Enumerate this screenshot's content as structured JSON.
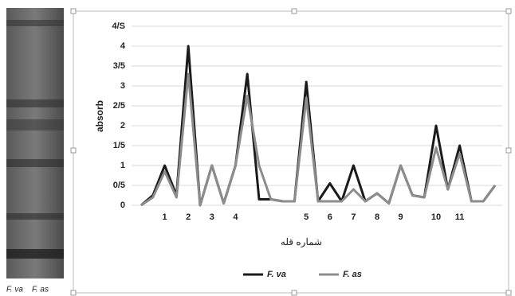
{
  "chart_data": {
    "type": "line",
    "ylabel": "absorb",
    "xlabel": "شماره قله",
    "categories": [
      null,
      null,
      "1",
      null,
      "2",
      null,
      "3",
      null,
      "4",
      null,
      null,
      null,
      null,
      null,
      "5",
      null,
      "6",
      null,
      "7",
      null,
      "8",
      null,
      "9",
      null,
      null,
      "10",
      null,
      "11",
      null,
      null,
      null
    ],
    "series": [
      {
        "name": "F. va",
        "color": "#1a1a1a",
        "values": [
          0,
          0.25,
          1,
          0.25,
          4,
          0,
          1,
          0.05,
          1,
          3.3,
          0.15,
          0.15,
          0.1,
          0.1,
          3.1,
          0.1,
          0.55,
          0.1,
          1,
          0.1,
          0.3,
          0.05,
          1,
          0.25,
          0.2,
          2,
          0.4,
          1.5,
          0.1,
          0.1,
          0.5
        ]
      },
      {
        "name": "F. as",
        "color": "#8c8c8c",
        "values": [
          0,
          0.2,
          0.85,
          0.2,
          3.3,
          0,
          1,
          0.05,
          1,
          2.75,
          1,
          0.15,
          0.1,
          0.1,
          2.7,
          0.1,
          0.1,
          0.1,
          0.4,
          0.1,
          0.3,
          0.05,
          1,
          0.25,
          0.2,
          1.45,
          0.4,
          1.3,
          0.1,
          0.1,
          0.5
        ]
      }
    ],
    "ylim": [
      0,
      4.5
    ],
    "yticks": [
      0,
      {
        "value": 0.5,
        "label": "0/5"
      },
      1,
      {
        "value": 1.5,
        "label": "1/5"
      },
      2,
      {
        "value": 2.5,
        "label": "2/5"
      },
      3,
      {
        "value": 3.5,
        "label": "3/5"
      },
      4,
      {
        "value": 4.5,
        "label": "4/S"
      }
    ],
    "grid": true,
    "legend": "bottom"
  },
  "gel": {
    "labels": [
      "F. va",
      "F. as"
    ]
  }
}
